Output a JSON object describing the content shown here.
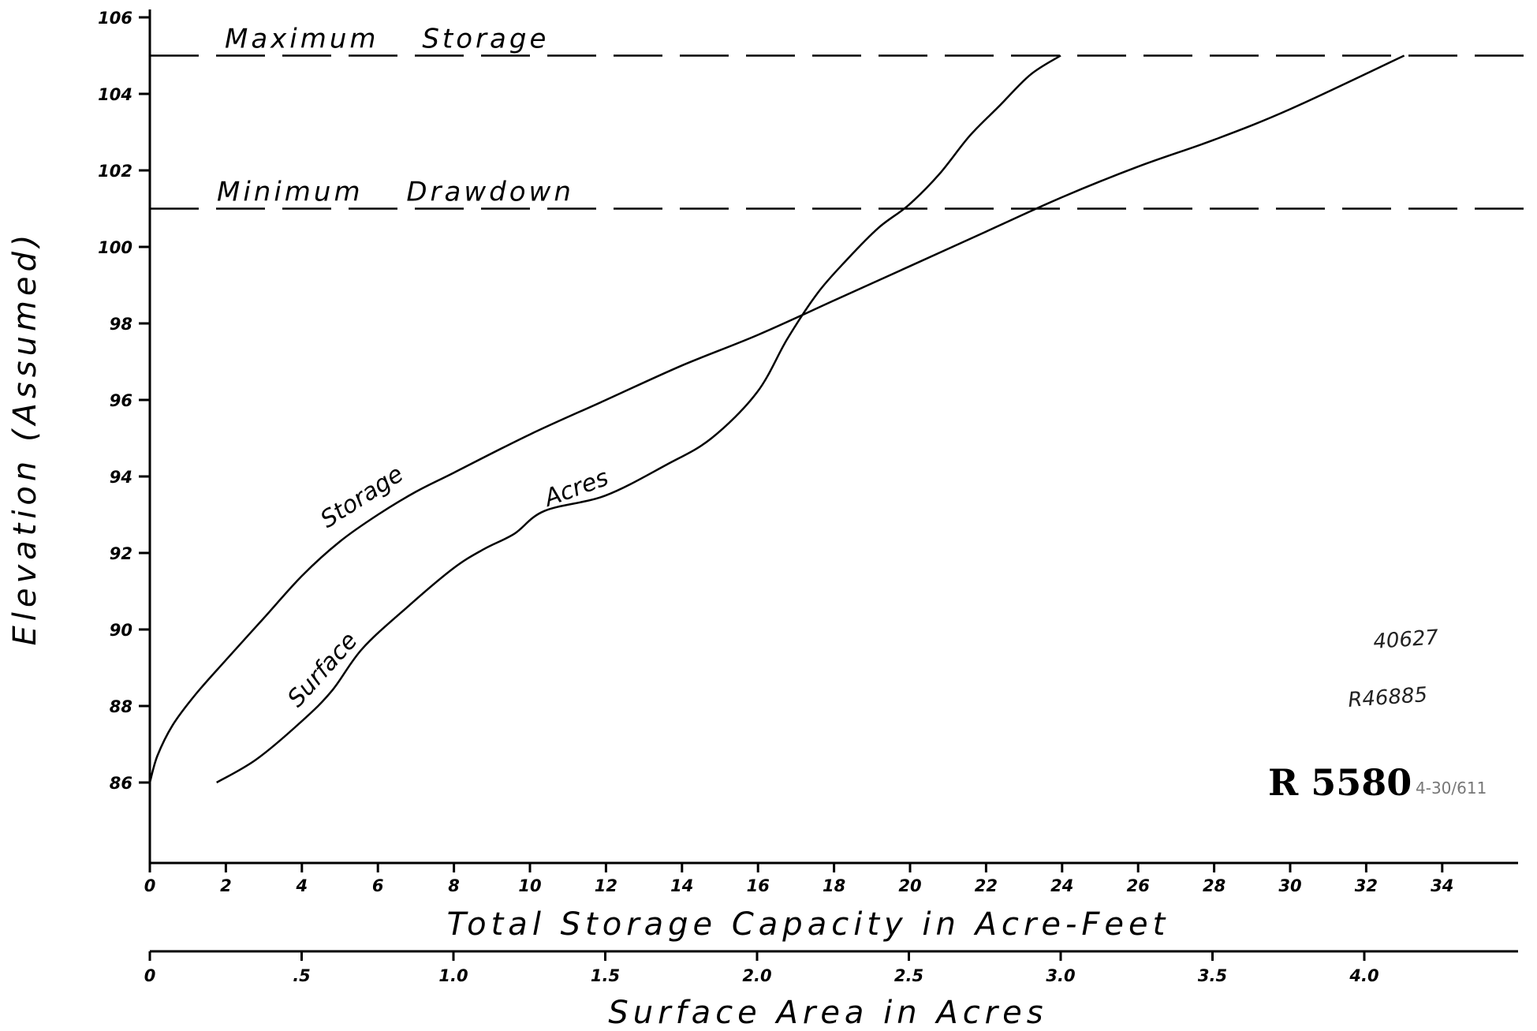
{
  "chart_data": {
    "type": "line",
    "ylabel": "Elevation (Assumed)",
    "xlabel": "Total Storage Capacity in Acre-Feet",
    "x2label": "Surface Area in Acres",
    "ylim": [
      84,
      106.3
    ],
    "xlim": [
      0,
      36
    ],
    "x2lim": [
      0,
      4.5
    ],
    "y_ticks": [
      86,
      88,
      90,
      92,
      94,
      96,
      98,
      100,
      102,
      104,
      106
    ],
    "y_tick_labels": [
      "86",
      "88",
      "90",
      "92",
      "94",
      "96",
      "98",
      "100",
      "102",
      "104",
      "106"
    ],
    "x_ticks": [
      0,
      2,
      4,
      6,
      8,
      10,
      12,
      14,
      16,
      18,
      20,
      22,
      24,
      26,
      28,
      30,
      32,
      34
    ],
    "x_tick_labels": [
      "0",
      "2",
      "4",
      "6",
      "8",
      "10",
      "12",
      "14",
      "16",
      "18",
      "20",
      "22",
      "24",
      "26",
      "28",
      "30",
      "32",
      "34"
    ],
    "x2_ticks": [
      0,
      0.5,
      1.0,
      1.5,
      2.0,
      2.5,
      3.0,
      3.5,
      4.0
    ],
    "x2_tick_labels": [
      "0",
      ".5",
      "1.0",
      "1.5",
      "2.0",
      "2.5",
      "3.0",
      "3.5",
      "4.0"
    ],
    "reference_lines": [
      {
        "label": "Maximum Storage",
        "y": 105
      },
      {
        "label": "Minimum Drawdown",
        "y": 101
      }
    ],
    "series": [
      {
        "name": "Storage",
        "axis": "x",
        "points": [
          [
            0,
            86
          ],
          [
            0.2,
            86.7
          ],
          [
            0.6,
            87.5
          ],
          [
            1.2,
            88.3
          ],
          [
            2,
            89.2
          ],
          [
            3,
            90.3
          ],
          [
            4,
            91.4
          ],
          [
            5,
            92.3
          ],
          [
            6,
            93
          ],
          [
            7,
            93.6
          ],
          [
            8,
            94.1
          ],
          [
            10,
            95.1
          ],
          [
            12,
            96
          ],
          [
            14,
            96.9
          ],
          [
            16,
            97.7
          ],
          [
            18,
            98.6
          ],
          [
            20,
            99.5
          ],
          [
            22,
            100.4
          ],
          [
            24,
            101.3
          ],
          [
            26,
            102.1
          ],
          [
            28,
            102.8
          ],
          [
            30,
            103.6
          ],
          [
            33,
            105
          ]
        ]
      },
      {
        "name": "Surface",
        "axis": "x2",
        "points": [
          [
            0.22,
            86
          ],
          [
            0.35,
            86.6
          ],
          [
            0.5,
            87.6
          ],
          [
            0.6,
            88.4
          ],
          [
            0.7,
            89.5
          ],
          [
            0.85,
            90.6
          ],
          [
            1.0,
            91.6
          ],
          [
            1.1,
            92.1
          ],
          [
            1.2,
            92.5
          ],
          [
            1.3,
            93.1
          ],
          [
            1.5,
            93.5
          ],
          [
            1.7,
            94.3
          ],
          [
            1.85,
            95
          ],
          [
            2.0,
            96.2
          ],
          [
            2.1,
            97.6
          ],
          [
            2.2,
            98.8
          ],
          [
            2.3,
            99.7
          ],
          [
            2.4,
            100.5
          ],
          [
            2.5,
            101.1
          ],
          [
            2.6,
            101.9
          ],
          [
            2.7,
            102.9
          ],
          [
            2.8,
            103.7
          ],
          [
            2.9,
            104.5
          ],
          [
            3.0,
            105
          ]
        ]
      }
    ],
    "curve_labels": [
      "Storage",
      "Surface",
      "Acres"
    ],
    "legend": "none",
    "grid": false
  },
  "annotations": {
    "number_small": "40627",
    "number_r": "R46885",
    "stamp": "R 5580",
    "stamp_suffix": "4-30/611"
  }
}
